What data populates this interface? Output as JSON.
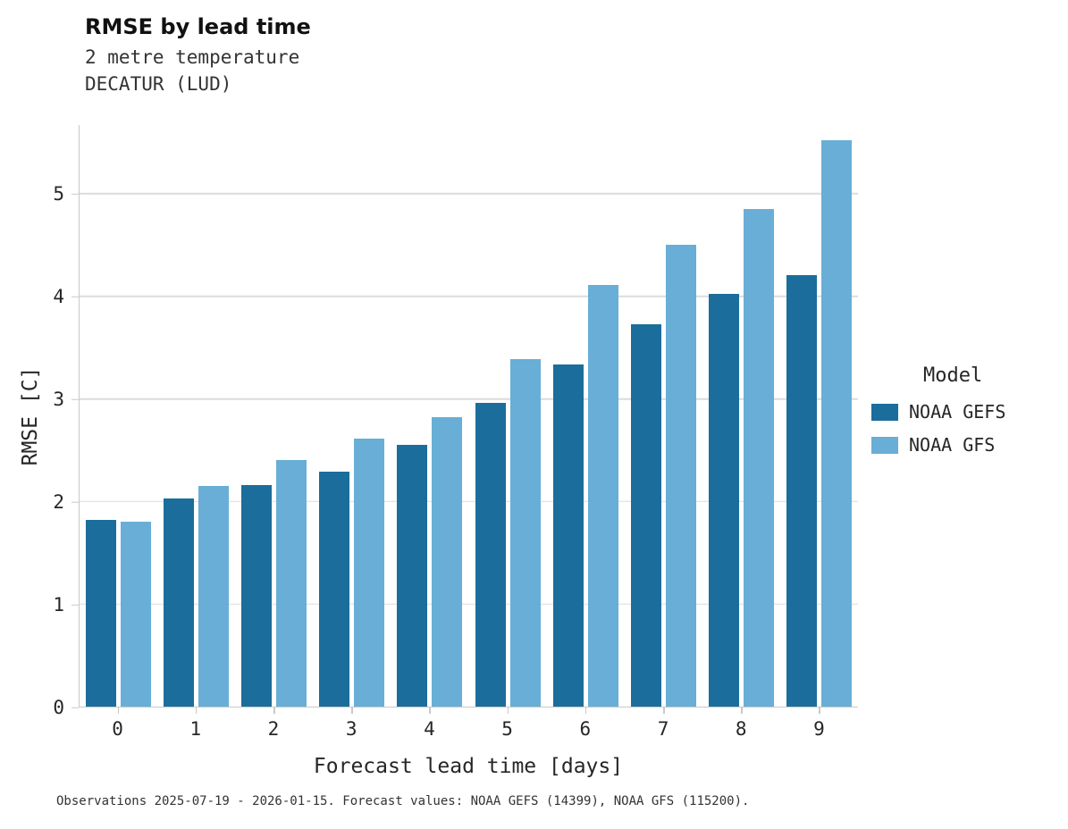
{
  "header": {
    "title": "RMSE by lead time",
    "subtitle": "2 metre temperature",
    "location": "DECATUR (LUD)"
  },
  "legend": {
    "title": "Model"
  },
  "caption": "Observations 2025-07-19 - 2026-01-15. Forecast values: NOAA GEFS (14399), NOAA GFS (115200).",
  "chart_data": {
    "type": "bar",
    "title": "RMSE by lead time",
    "subtitle": [
      "2 metre temperature",
      "DECATUR (LUD)"
    ],
    "categories": [
      "0",
      "1",
      "2",
      "3",
      "4",
      "5",
      "6",
      "7",
      "8",
      "9"
    ],
    "series": [
      {
        "name": "NOAA GEFS",
        "color": "#1b6d9c",
        "values": [
          1.82,
          2.03,
          2.16,
          2.29,
          2.55,
          2.96,
          3.34,
          3.73,
          4.02,
          4.21
        ]
      },
      {
        "name": "NOAA GFS",
        "color": "#68aed6",
        "values": [
          1.8,
          2.15,
          2.4,
          2.61,
          2.82,
          3.39,
          4.11,
          4.5,
          4.85,
          5.52
        ]
      }
    ],
    "xlabel": "Forecast lead time [days]",
    "ylabel": "RMSE [C]",
    "ylim": [
      0,
      5.67
    ],
    "yticks": [
      0,
      1,
      2,
      3,
      4,
      5
    ],
    "grid": "horizontal",
    "legend_position": "right",
    "legend_title": "Model"
  },
  "colors": {
    "grid": "#dcdcdc",
    "axis": "#c9c9c9",
    "text": "#262626",
    "background": "#ffffff"
  }
}
